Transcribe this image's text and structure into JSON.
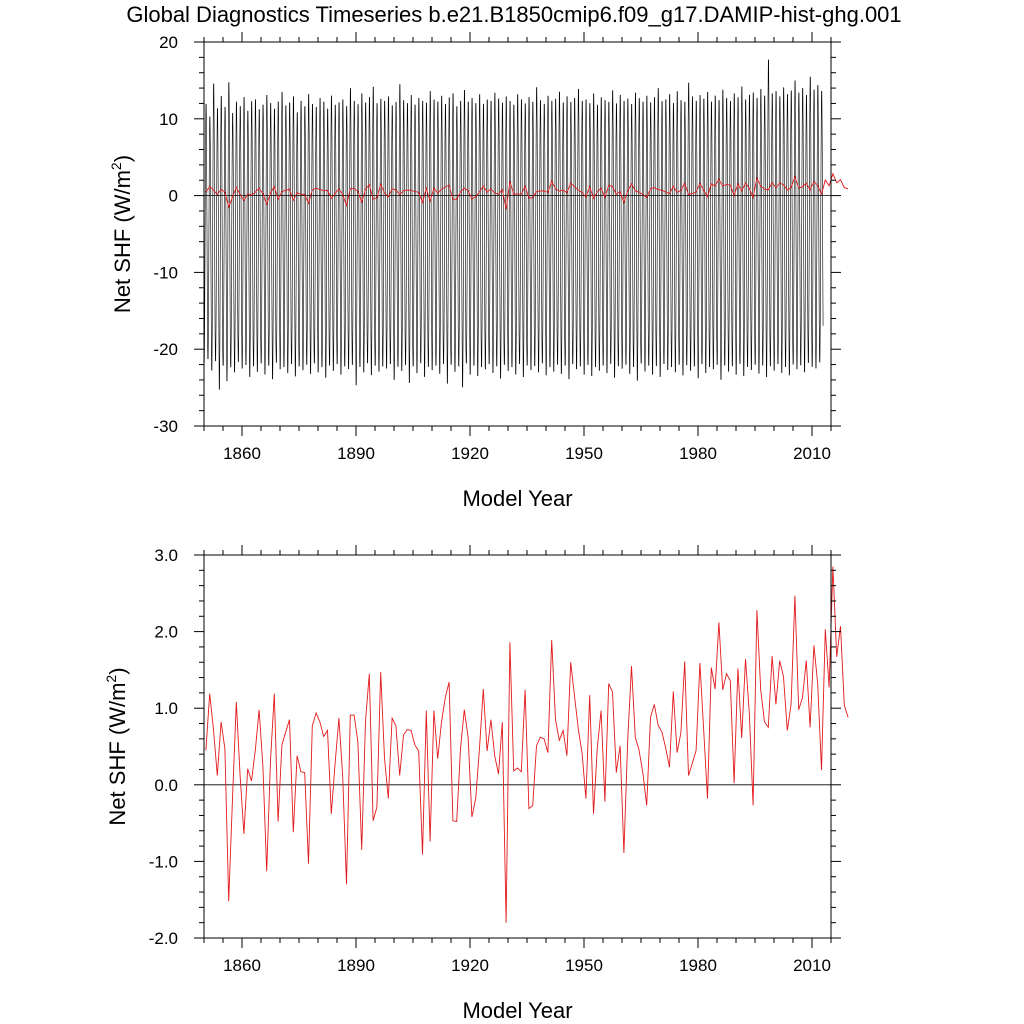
{
  "title": "Global Diagnostics Timeseries b.e21.B1850cmip6.f09_g17.DAMIP-hist-ghg.001",
  "colors": {
    "monthly": "#000000",
    "annual": "#e31a1c",
    "axes": "#000000"
  },
  "chart_data": [
    {
      "type": "line",
      "panel": "top",
      "xlabel": "Model Year",
      "ylabel": "Net SHF (W/m²)",
      "ylabel_main": "Net SHF (W/m",
      "ylabel_sup": "2",
      "ylabel_close": ")",
      "xlim": [
        1850,
        2015
      ],
      "ylim": [
        -30,
        20
      ],
      "xticks": [
        1860,
        1890,
        1920,
        1950,
        1980,
        2010
      ],
      "yticks": [
        20,
        10,
        0,
        -10,
        -20,
        -30
      ],
      "ytick_labels": [
        "20",
        "10",
        "0",
        "-10",
        "-20",
        "-30"
      ],
      "zero_line": 0,
      "series": [
        {
          "role": "monthly",
          "color": "#000000",
          "description_seasonal_range": [
            -24,
            13
          ],
          "annual_maxima": [
            12.5,
            10.8,
            15.2,
            11.9,
            13.6,
            12.1,
            15.4,
            11.3,
            12.8,
            12.2,
            13.4,
            11.6,
            12.9,
            13.1,
            11.8,
            12.4,
            13.7,
            12.6,
            11.9,
            12.8,
            14.1,
            12.3,
            12.7,
            13.5,
            11.4,
            12.9,
            12.2,
            13.8,
            12.5,
            12.1,
            13.3,
            12.8,
            11.9,
            13.6,
            12.4,
            12.7,
            13.1,
            12.2,
            14.6,
            12.9,
            12.5,
            13.9,
            12.7,
            13.4,
            14.8,
            12.6,
            13.2,
            12.9,
            13.5,
            12.3,
            12.8,
            15.1,
            13.0,
            12.6,
            13.7,
            12.4,
            13.3,
            12.9,
            12.7,
            14.2,
            13.1,
            12.8,
            13.6,
            12.5,
            13.4,
            13.9,
            12.2,
            12.9,
            14.4,
            12.8,
            13.3,
            12.6,
            13.8,
            12.5,
            13.1,
            12.9,
            14.0,
            13.2,
            12.7,
            13.5,
            12.9,
            12.4,
            13.8,
            13.1,
            12.6,
            13.4,
            12.8,
            14.7,
            13.0,
            12.5,
            13.6,
            12.9,
            13.2,
            14.1,
            12.7,
            13.5,
            12.8,
            13.3,
            14.5,
            12.9,
            13.1,
            12.6,
            13.9,
            12.4,
            13.4,
            13.0,
            12.8,
            14.3,
            12.6,
            13.7,
            12.9,
            13.2,
            12.5,
            14.0,
            13.3,
            12.8,
            13.6,
            12.7,
            13.4,
            14.6,
            12.9,
            13.1,
            13.8,
            12.6,
            14.2,
            13.0,
            12.8,
            15.3,
            13.5,
            12.9,
            13.7,
            13.2,
            14.1,
            12.8,
            13.6,
            13.0,
            14.4,
            13.3,
            12.9,
            13.9,
            13.4,
            14.8,
            13.1,
            13.7,
            14.0,
            13.3,
            14.5,
            13.6,
            18.4,
            13.9,
            14.2,
            13.5,
            14.7,
            13.8,
            14.3,
            15.6,
            14.0,
            14.6,
            13.7,
            16.1,
            14.4,
            15.0,
            14.2
          ],
          "annual_minima": [
            -22.3,
            -21.8,
            -23.4,
            -22.1,
            -25.9,
            -22.7,
            -24.8,
            -22.9,
            -23.6,
            -22.2,
            -23.1,
            -22.6,
            -24.2,
            -22.8,
            -23.5,
            -22.4,
            -23.9,
            -22.7,
            -24.5,
            -22.3,
            -23.2,
            -22.9,
            -23.7,
            -22.5,
            -24.1,
            -22.8,
            -23.3,
            -22.6,
            -23.8,
            -22.4,
            -23.6,
            -22.9,
            -24.3,
            -22.7,
            -23.4,
            -22.5,
            -23.9,
            -22.8,
            -23.2,
            -22.6,
            -25.3,
            -22.9,
            -23.6,
            -22.4,
            -24.0,
            -22.7,
            -23.5,
            -22.8,
            -23.1,
            -22.5,
            -24.6,
            -22.9,
            -23.4,
            -22.6,
            -25.0,
            -22.8,
            -23.7,
            -22.4,
            -24.2,
            -22.9,
            -23.3,
            -22.7,
            -23.8,
            -22.5,
            -25.1,
            -22.6,
            -23.5,
            -22.8,
            -25.6,
            -22.4,
            -23.9,
            -22.7,
            -24.1,
            -22.9,
            -23.2,
            -22.5,
            -23.7,
            -22.8,
            -24.4,
            -22.6,
            -23.4,
            -22.9,
            -23.9,
            -22.5,
            -24.2,
            -22.7,
            -23.3,
            -22.8,
            -23.6,
            -22.4,
            -24.0,
            -22.9,
            -23.5,
            -22.6,
            -23.8,
            -22.7,
            -24.5,
            -22.5,
            -23.2,
            -22.8,
            -23.9,
            -22.6,
            -24.1,
            -22.9,
            -23.4,
            -22.7,
            -23.7,
            -22.5,
            -24.3,
            -22.8,
            -23.1,
            -22.6,
            -23.8,
            -22.9,
            -24.7,
            -22.4,
            -23.5,
            -22.7,
            -23.9,
            -22.8,
            -24.2,
            -22.5,
            -23.3,
            -22.9,
            -23.6,
            -22.6,
            -24.0,
            -22.7,
            -23.4,
            -22.8,
            -24.4,
            -22.5,
            -23.7,
            -22.9,
            -23.2,
            -22.6,
            -24.6,
            -22.7,
            -23.5,
            -22.8,
            -23.9,
            -22.5,
            -24.1,
            -22.9,
            -23.3,
            -22.6,
            -23.8,
            -22.7,
            -24.3,
            -22.8,
            -23.4,
            -22.5,
            -23.7,
            -22.9,
            -24.0,
            -22.6,
            -23.2,
            -22.7,
            -23.6,
            -22.4,
            -22.9,
            -23.1,
            -22.3,
            -22.8,
            -22.5,
            -22.7,
            -22.4
          ]
        },
        {
          "role": "annual",
          "color": "#e31a1c",
          "same_values_as_bottom_panel": true
        }
      ]
    },
    {
      "type": "line",
      "panel": "bottom",
      "xlabel": "Model Year",
      "ylabel": "Net SHF (W/m²)",
      "ylabel_main": "Net SHF (W/m",
      "ylabel_sup": "2",
      "ylabel_close": ")",
      "xlim": [
        1850,
        2015
      ],
      "ylim": [
        -2.0,
        3.0
      ],
      "xticks": [
        1860,
        1890,
        1920,
        1950,
        1980,
        2010
      ],
      "yticks": [
        3.0,
        2.0,
        1.0,
        0.0,
        -1.0,
        -2.0
      ],
      "ytick_labels": [
        "3.0",
        "2.0",
        "1.0",
        "0.0",
        "-1.0",
        "-2.0"
      ],
      "zero_line": 0,
      "x_start": 1850,
      "series": [
        {
          "role": "annual",
          "color": "#e31a1c",
          "values": [
            0.45,
            1.19,
            0.72,
            0.12,
            0.82,
            0.47,
            -1.52,
            -0.18,
            1.08,
            0.12,
            -0.64,
            0.21,
            0.05,
            0.45,
            0.98,
            0.24,
            -1.13,
            0.31,
            1.19,
            -0.48,
            0.52,
            0.69,
            0.85,
            -0.62,
            0.38,
            0.17,
            0.16,
            -1.03,
            0.77,
            0.94,
            0.82,
            0.63,
            0.71,
            -0.38,
            0.28,
            0.87,
            0.11,
            -1.3,
            0.91,
            0.91,
            0.56,
            -0.85,
            0.83,
            1.45,
            -0.47,
            -0.29,
            1.47,
            0.35,
            -0.18,
            0.87,
            0.77,
            0.12,
            0.65,
            0.72,
            0.71,
            0.52,
            0.44,
            -0.91,
            0.97,
            -0.74,
            0.97,
            0.34,
            0.82,
            1.14,
            1.34,
            -0.47,
            -0.48,
            0.47,
            0.98,
            0.62,
            -0.42,
            -0.18,
            0.48,
            1.25,
            0.44,
            0.85,
            0.38,
            0.14,
            0.82,
            -1.8,
            1.86,
            0.18,
            0.22,
            0.17,
            1.24,
            -0.31,
            -0.27,
            0.51,
            0.62,
            0.6,
            0.42,
            1.89,
            0.85,
            0.58,
            0.71,
            0.38,
            1.6,
            1.16,
            0.73,
            0.41,
            -0.18,
            1.17,
            -0.38,
            0.48,
            0.97,
            -0.22,
            1.32,
            1.21,
            0.16,
            0.51,
            -0.89,
            0.58,
            1.55,
            0.62,
            0.45,
            0.15,
            -0.27,
            0.88,
            1.05,
            0.78,
            0.69,
            0.48,
            0.23,
            1.22,
            0.42,
            0.68,
            1.61,
            0.12,
            0.28,
            0.45,
            1.59,
            0.71,
            -0.18,
            1.53,
            1.25,
            2.12,
            1.24,
            1.45,
            1.36,
            0.02,
            1.52,
            0.61,
            1.64,
            0.94,
            -0.27,
            2.28,
            1.24,
            0.82,
            0.75,
            1.68,
            1.05,
            1.62,
            1.41,
            0.71,
            1.05,
            2.47,
            0.98,
            1.14,
            1.62,
            0.75,
            1.82,
            1.32,
            0.19,
            2.03,
            1.27,
            2.85,
            1.67,
            2.07,
            1.04,
            0.88
          ]
        }
      ]
    }
  ]
}
